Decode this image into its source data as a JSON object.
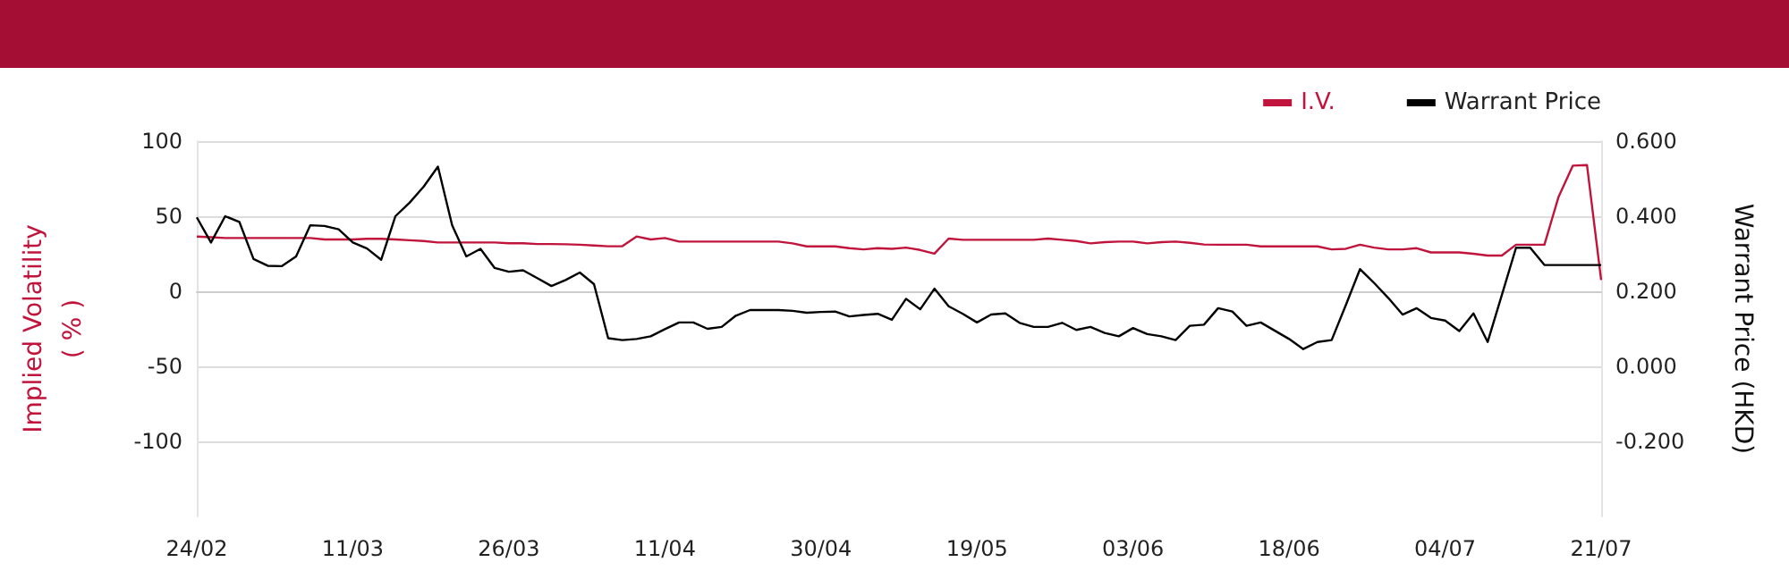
{
  "chart_data": {
    "type": "line",
    "ylabel": "Implied Volatility\n( % )",
    "y2label": "Warrant Price (HKD)",
    "categories": [
      "24/02",
      null,
      null,
      null,
      null,
      null,
      null,
      null,
      null,
      null,
      null,
      "11/03",
      null,
      null,
      null,
      null,
      null,
      null,
      null,
      null,
      null,
      null,
      "26/03",
      null,
      null,
      null,
      null,
      null,
      null,
      null,
      null,
      null,
      null,
      "11/04",
      null,
      null,
      null,
      null,
      null,
      null,
      null,
      null,
      null,
      null,
      "30/04",
      null,
      null,
      null,
      null,
      null,
      null,
      null,
      null,
      null,
      null,
      "19/05",
      null,
      null,
      null,
      null,
      null,
      null,
      null,
      null,
      null,
      null,
      "03/06",
      null,
      null,
      null,
      null,
      null,
      null,
      null,
      null,
      null,
      null,
      "18/06",
      null,
      null,
      null,
      null,
      null,
      null,
      null,
      null,
      null,
      null,
      "04/07",
      null,
      null,
      null,
      null,
      null,
      null,
      null,
      null,
      null,
      null,
      "21/07"
    ],
    "series": [
      {
        "name": "I.V.",
        "color": "#c0143c",
        "values": [
          36.5,
          36,
          35.5,
          35.5,
          35.5,
          35.5,
          35.5,
          35.5,
          35.5,
          34.5,
          34.5,
          34.5,
          35,
          35,
          34.5,
          34,
          33.5,
          32.5,
          32.5,
          32.5,
          32.5,
          32.5,
          32,
          32,
          31.5,
          31.5,
          31.3,
          31,
          30.5,
          30,
          30,
          36.5,
          34.5,
          35.5,
          33.1,
          33.1,
          33.1,
          33.1,
          33.1,
          33.1,
          33.1,
          33.1,
          31.9,
          29.9,
          29.9,
          29.9,
          28.7,
          27.9,
          28.7,
          28.3,
          29.1,
          27.5,
          25.1,
          35.1,
          34.3,
          34.3,
          34.3,
          34.3,
          34.3,
          34.3,
          35.1,
          34.3,
          33.5,
          31.9,
          32.7,
          33.1,
          33.1,
          31.9,
          32.7,
          33.1,
          32.3,
          31.2,
          31,
          31,
          31,
          29.9,
          29.9,
          29.9,
          29.9,
          29.9,
          27.9,
          28.3,
          31,
          29.1,
          27.9,
          27.9,
          28.7,
          25.9,
          25.9,
          25.9,
          25,
          23.8,
          23.8,
          31,
          31,
          31,
          63,
          83.7,
          84.1,
          7.5
        ]
      },
      {
        "name": "Warrant Price",
        "color": "#000000",
        "axis": "y2",
        "values": [
          0.397,
          0.33,
          0.4,
          0.385,
          0.286,
          0.268,
          0.267,
          0.293,
          0.376,
          0.374,
          0.365,
          0.33,
          0.314,
          0.284,
          0.4,
          0.436,
          0.479,
          0.532,
          0.376,
          0.293,
          0.313,
          0.262,
          0.252,
          0.256,
          0.235,
          0.214,
          0.23,
          0.25,
          0.219,
          0.075,
          0.07,
          0.073,
          0.08,
          0.099,
          0.117,
          0.117,
          0.1,
          0.105,
          0.135,
          0.15,
          0.15,
          0.15,
          0.148,
          0.143,
          0.145,
          0.146,
          0.133,
          0.137,
          0.14,
          0.124,
          0.18,
          0.152,
          0.207,
          0.16,
          0.14,
          0.117,
          0.138,
          0.141,
          0.116,
          0.105,
          0.105,
          0.116,
          0.097,
          0.105,
          0.089,
          0.08,
          0.102,
          0.086,
          0.08,
          0.07,
          0.108,
          0.111,
          0.155,
          0.146,
          0.108,
          0.117,
          0.095,
          0.073,
          0.046,
          0.065,
          0.07,
          0.163,
          0.259,
          0.222,
          0.182,
          0.138,
          0.155,
          0.129,
          0.122,
          0.094,
          0.141,
          0.065,
          0.19,
          0.316,
          0.316,
          0.27,
          0.27,
          0.27,
          0.27,
          0.27
        ]
      }
    ],
    "ylim": [
      -150,
      100
    ],
    "yticks": [
      -100,
      -50,
      0,
      50,
      100
    ],
    "y2lim": [
      -0.4,
      0.6
    ],
    "y2ticks": [
      {
        "value": -0.2,
        "label": "-0.200"
      },
      {
        "value": 0,
        "label": "0.000"
      },
      {
        "value": 0.2,
        "label": "0.200"
      },
      {
        "value": 0.4,
        "label": "0.400"
      },
      {
        "value": 0.6,
        "label": "0.600"
      }
    ],
    "grid": "y",
    "legend": "top right",
    "marker": "none",
    "line_style": "solid"
  }
}
